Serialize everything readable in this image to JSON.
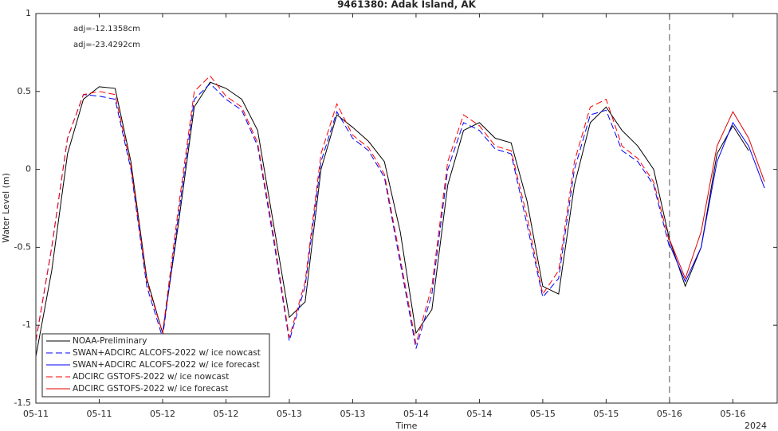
{
  "chart_data": {
    "type": "line",
    "title": "9461380: Adak Island, AK",
    "xlabel": "Time",
    "ylabel": "Water Level (m)",
    "year_label": "2024",
    "annotations": [
      {
        "text": "adj=-12.1358cm",
        "color": "#0000ff"
      },
      {
        "text": "adj=-23.4292cm",
        "color": "#ff0000"
      }
    ],
    "reference_line_x": "2024-05-16 00:00",
    "legend": "lower left",
    "grid": false,
    "xlim": [
      "2024-05-11 00:00",
      "2024-05-16 20:24"
    ],
    "xticks": [
      {
        "value": "2024-05-11 00:00",
        "label": "05-11"
      },
      {
        "value": "2024-05-11 12:00",
        "label": "05-11"
      },
      {
        "value": "2024-05-12 00:00",
        "label": "05-12"
      },
      {
        "value": "2024-05-12 12:00",
        "label": "05-12"
      },
      {
        "value": "2024-05-13 00:00",
        "label": "05-13"
      },
      {
        "value": "2024-05-13 12:00",
        "label": "05-13"
      },
      {
        "value": "2024-05-14 00:00",
        "label": "05-14"
      },
      {
        "value": "2024-05-14 12:00",
        "label": "05-14"
      },
      {
        "value": "2024-05-15 00:00",
        "label": "05-15"
      },
      {
        "value": "2024-05-15 12:00",
        "label": "05-15"
      },
      {
        "value": "2024-05-16 00:00",
        "label": "05-16"
      },
      {
        "value": "2024-05-16 12:00",
        "label": "05-16"
      }
    ],
    "ylim": [
      -1.5,
      1
    ],
    "yticks": [
      -1.5,
      -1,
      -0.5,
      0,
      0.5,
      1
    ],
    "x": [
      "2024-05-11 00:00",
      "2024-05-11 03:00",
      "2024-05-11 06:00",
      "2024-05-11 09:00",
      "2024-05-11 12:00",
      "2024-05-11 15:00",
      "2024-05-11 18:00",
      "2024-05-11 21:00",
      "2024-05-12 00:00",
      "2024-05-12 03:00",
      "2024-05-12 06:00",
      "2024-05-12 09:00",
      "2024-05-12 12:00",
      "2024-05-12 15:00",
      "2024-05-12 18:00",
      "2024-05-12 21:00",
      "2024-05-13 00:00",
      "2024-05-13 03:00",
      "2024-05-13 06:00",
      "2024-05-13 09:00",
      "2024-05-13 12:00",
      "2024-05-13 15:00",
      "2024-05-13 18:00",
      "2024-05-13 21:00",
      "2024-05-14 00:00",
      "2024-05-14 03:00",
      "2024-05-14 06:00",
      "2024-05-14 09:00",
      "2024-05-14 12:00",
      "2024-05-14 15:00",
      "2024-05-14 18:00",
      "2024-05-14 21:00",
      "2024-05-15 00:00",
      "2024-05-15 03:00",
      "2024-05-15 06:00",
      "2024-05-15 09:00",
      "2024-05-15 12:00",
      "2024-05-15 15:00",
      "2024-05-15 18:00",
      "2024-05-15 21:00",
      "2024-05-16 00:00",
      "2024-05-16 03:00",
      "2024-05-16 06:00",
      "2024-05-16 09:00",
      "2024-05-16 12:00",
      "2024-05-16 15:00",
      "2024-05-16 18:00"
    ],
    "series": [
      {
        "name": "NOAA-Preliminary",
        "color": "#000000",
        "dashed": false,
        "values": [
          -1.2,
          -0.65,
          0.1,
          0.45,
          0.53,
          0.52,
          0.05,
          -0.7,
          -1.05,
          -0.35,
          0.4,
          0.56,
          0.52,
          0.45,
          0.25,
          -0.35,
          -0.95,
          -0.85,
          0.0,
          0.35,
          0.27,
          0.18,
          0.05,
          -0.4,
          -1.05,
          -0.9,
          -0.1,
          0.25,
          0.3,
          0.2,
          0.17,
          -0.2,
          -0.75,
          -0.8,
          -0.1,
          0.3,
          0.4,
          0.25,
          0.15,
          0.0,
          -0.45,
          -0.75,
          -0.5,
          0.1,
          0.28,
          0.12,
          null
        ]
      },
      {
        "name": "SWAN+ADCIRC ALCOFS-2022 w/ ice nowcast",
        "color": "#0000ff",
        "dashed": true,
        "values": [
          -1.1,
          -0.5,
          0.2,
          0.48,
          0.47,
          0.45,
          0.0,
          -0.75,
          -1.08,
          -0.3,
          0.45,
          0.55,
          0.45,
          0.38,
          0.15,
          -0.45,
          -1.1,
          -0.75,
          0.05,
          0.37,
          0.2,
          0.12,
          -0.05,
          -0.6,
          -1.15,
          -0.8,
          0.0,
          0.3,
          0.25,
          0.13,
          0.1,
          -0.35,
          -0.82,
          -0.7,
          0.0,
          0.35,
          0.38,
          0.12,
          0.05,
          -0.1,
          -0.5,
          null,
          null,
          null,
          null,
          null,
          null
        ]
      },
      {
        "name": "SWAN+ADCIRC ALCOFS-2022 w/ ice forecast",
        "color": "#0000ff",
        "dashed": false,
        "values": [
          null,
          null,
          null,
          null,
          null,
          null,
          null,
          null,
          null,
          null,
          null,
          null,
          null,
          null,
          null,
          null,
          null,
          null,
          null,
          null,
          null,
          null,
          null,
          null,
          null,
          null,
          null,
          null,
          null,
          null,
          null,
          null,
          null,
          null,
          null,
          null,
          null,
          null,
          null,
          null,
          -0.48,
          -0.72,
          -0.5,
          0.05,
          0.3,
          0.15,
          -0.12
        ]
      },
      {
        "name": "ADCIRC GSTOFS-2022 w/ ice nowcast",
        "color": "#ff0000",
        "dashed": true,
        "values": [
          -1.1,
          -0.5,
          0.2,
          0.48,
          0.5,
          0.48,
          0.02,
          -0.72,
          -1.05,
          -0.25,
          0.5,
          0.6,
          0.47,
          0.4,
          0.17,
          -0.42,
          -1.08,
          -0.72,
          0.1,
          0.42,
          0.22,
          0.14,
          -0.03,
          -0.57,
          -1.12,
          -0.75,
          0.05,
          0.35,
          0.28,
          0.15,
          0.12,
          -0.3,
          -0.8,
          -0.65,
          0.05,
          0.4,
          0.45,
          0.15,
          0.07,
          -0.08,
          -0.47,
          null,
          null,
          null,
          null,
          null,
          null
        ]
      },
      {
        "name": "ADCIRC GSTOFS-2022 w/ ice forecast",
        "color": "#e00000",
        "dashed": false,
        "values": [
          null,
          null,
          null,
          null,
          null,
          null,
          null,
          null,
          null,
          null,
          null,
          null,
          null,
          null,
          null,
          null,
          null,
          null,
          null,
          null,
          null,
          null,
          null,
          null,
          null,
          null,
          null,
          null,
          null,
          null,
          null,
          null,
          null,
          null,
          null,
          null,
          null,
          null,
          null,
          null,
          -0.45,
          -0.7,
          -0.4,
          0.15,
          0.37,
          0.2,
          -0.08
        ]
      }
    ]
  }
}
